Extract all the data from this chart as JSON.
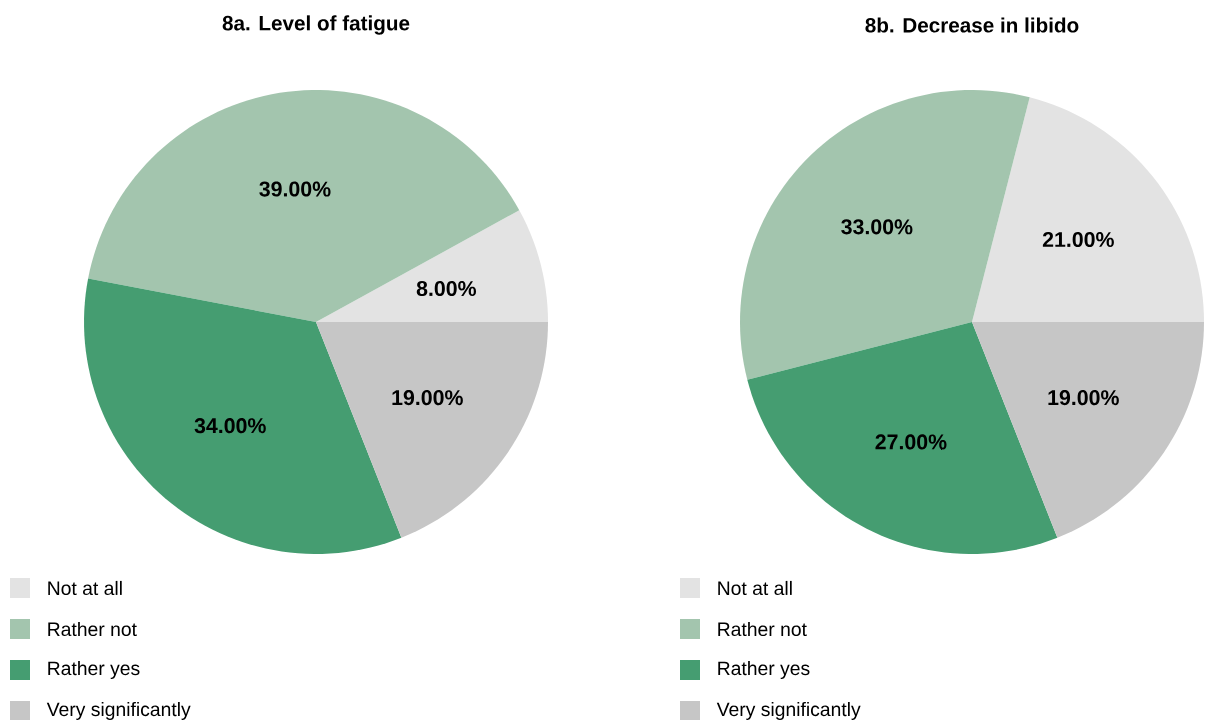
{
  "chart_data": [
    {
      "type": "pie",
      "title": "8a. Level of fatigue",
      "categories": [
        "Not at all",
        "Rather not",
        "Rather yes",
        "Very significantly"
      ],
      "values": [
        8,
        39,
        34,
        19
      ],
      "colors": [
        "#e3e3e3",
        "#a3c5ae",
        "#459d71",
        "#c6c6c6"
      ],
      "value_labels": [
        "8.00%",
        "39.00%",
        "34.00%",
        "19.00%"
      ],
      "legend": "bottom left"
    },
    {
      "type": "pie",
      "title": "8b. Decrease in libido",
      "categories": [
        "Not at all",
        "Rather not",
        "Rather yes",
        "Very significantly"
      ],
      "values": [
        21,
        33,
        27,
        19
      ],
      "colors": [
        "#e3e3e3",
        "#a3c5ae",
        "#459d71",
        "#c6c6c6"
      ],
      "value_labels": [
        "21.00%",
        "33.00%",
        "27.00%",
        "19.00%"
      ],
      "legend": "bottom left"
    }
  ]
}
